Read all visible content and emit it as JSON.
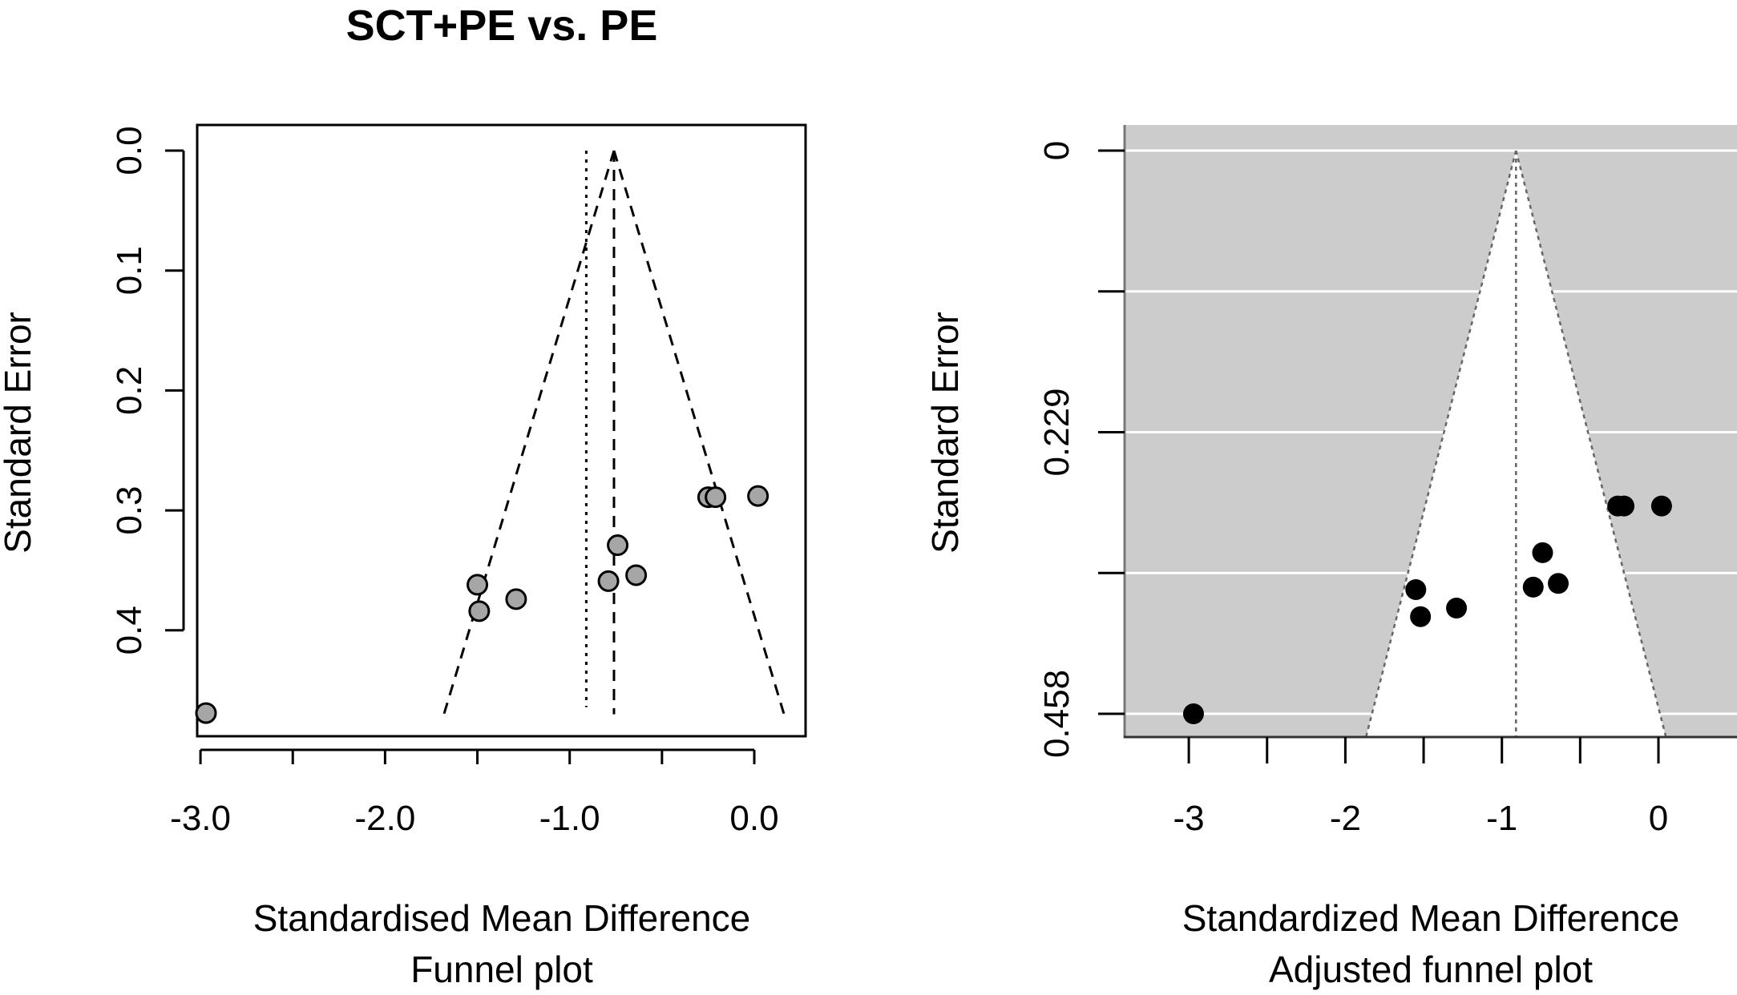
{
  "chart_data": [
    {
      "type": "scatter",
      "title": "SCT+PE vs. PE",
      "subtitle": "Funnel plot",
      "xlabel": "Standardised Mean Difference",
      "ylabel": "Standard Error",
      "xlim": [
        -3.0,
        0.2
      ],
      "ylim": [
        0.47,
        0.0
      ],
      "xticks": [
        -3.0,
        -2.5,
        -2.0,
        -1.5,
        -1.0,
        -0.5,
        0.0
      ],
      "xtick_labels": [
        "-3.0",
        "",
        "-2.0",
        "",
        "-1.0",
        "",
        "0.0"
      ],
      "yticks": [
        0.0,
        0.1,
        0.2,
        0.3,
        0.4
      ],
      "ytick_labels": [
        "0.0",
        "0.1",
        "0.2",
        "0.3",
        "0.4"
      ],
      "grid": false,
      "pooled_estimate": -0.76,
      "dotted_reference": -0.91,
      "funnel_apex_se": 0.0,
      "funnel_base_se": 0.47,
      "points": [
        {
          "x": -2.97,
          "y": 0.469
        },
        {
          "x": -1.5,
          "y": 0.362
        },
        {
          "x": -1.49,
          "y": 0.384
        },
        {
          "x": -1.29,
          "y": 0.374
        },
        {
          "x": -0.79,
          "y": 0.359
        },
        {
          "x": -0.74,
          "y": 0.329
        },
        {
          "x": -0.64,
          "y": 0.354
        },
        {
          "x": -0.25,
          "y": 0.289
        },
        {
          "x": -0.21,
          "y": 0.289
        },
        {
          "x": 0.02,
          "y": 0.288
        }
      ],
      "point_fill": "#a6a6a6",
      "point_stroke": "#000000"
    },
    {
      "type": "scatter",
      "subtitle": "Adjusted funnel plot",
      "xlabel": "Standardized Mean Difference",
      "ylabel": "Standard Error",
      "xlim": [
        -3.4,
        0.4
      ],
      "ylim": [
        0.458,
        0.0
      ],
      "xticks": [
        -3.0,
        -2.5,
        -2.0,
        -1.5,
        -1.0,
        -0.5,
        0.0
      ],
      "xtick_labels": [
        "-3",
        "",
        "-2",
        "",
        "-1",
        "",
        "0"
      ],
      "yticks": [
        0.0,
        0.1145,
        0.229,
        0.3435,
        0.458
      ],
      "ytick_labels": [
        "0",
        "",
        "0.229",
        "",
        "0.458"
      ],
      "grid": true,
      "background": "#cccccc",
      "funnel_fill": "#ffffff",
      "center_estimate": -0.91,
      "funnel_base_left": -1.83,
      "funnel_base_right": 0.01,
      "points": [
        {
          "x": -2.97,
          "y": 0.458
        },
        {
          "x": -1.55,
          "y": 0.357
        },
        {
          "x": -1.52,
          "y": 0.379
        },
        {
          "x": -1.29,
          "y": 0.372
        },
        {
          "x": -0.8,
          "y": 0.355
        },
        {
          "x": -0.74,
          "y": 0.327
        },
        {
          "x": -0.64,
          "y": 0.352
        },
        {
          "x": -0.26,
          "y": 0.289
        },
        {
          "x": -0.22,
          "y": 0.289
        },
        {
          "x": 0.02,
          "y": 0.289
        }
      ],
      "point_fill": "#000000"
    }
  ]
}
